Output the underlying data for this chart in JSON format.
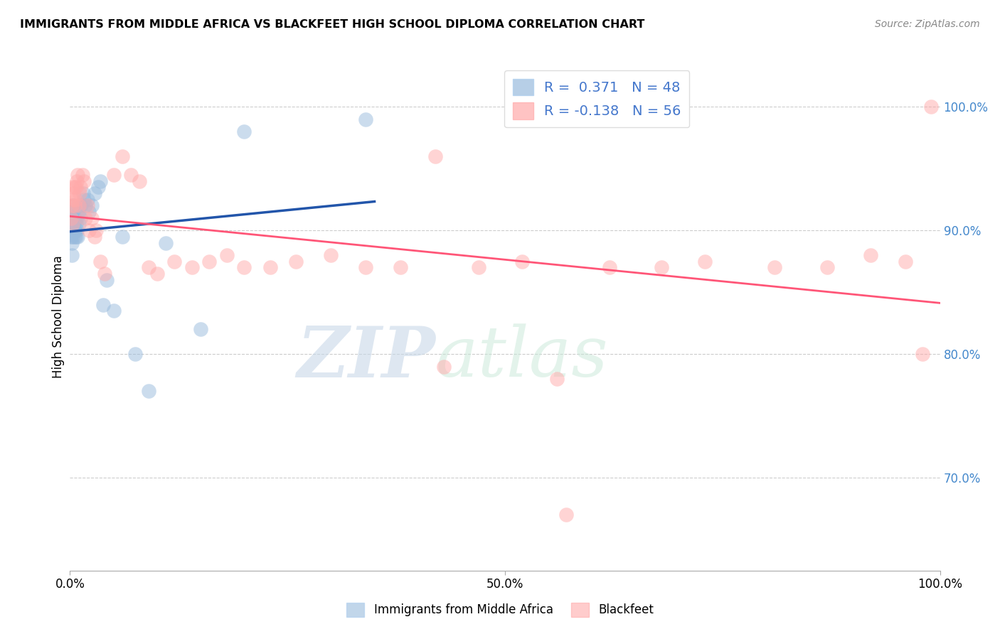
{
  "title": "IMMIGRANTS FROM MIDDLE AFRICA VS BLACKFEET HIGH SCHOOL DIPLOMA CORRELATION CHART",
  "source": "Source: ZipAtlas.com",
  "ylabel": "High School Diploma",
  "legend_r1": "R =  0.371",
  "legend_n1": "N = 48",
  "legend_r2": "R = -0.138",
  "legend_n2": "N = 56",
  "blue_color": "#99BBDD",
  "pink_color": "#FFAAAA",
  "line_blue": "#2255AA",
  "line_pink": "#FF5577",
  "watermark_zip": "ZIP",
  "watermark_atlas": "atlas",
  "blue_scatter_x": [
    0.001,
    0.001,
    0.001,
    0.002,
    0.002,
    0.002,
    0.002,
    0.003,
    0.003,
    0.003,
    0.003,
    0.004,
    0.004,
    0.004,
    0.005,
    0.005,
    0.005,
    0.006,
    0.006,
    0.007,
    0.007,
    0.008,
    0.008,
    0.009,
    0.01,
    0.01,
    0.011,
    0.012,
    0.013,
    0.015,
    0.016,
    0.018,
    0.02,
    0.022,
    0.025,
    0.028,
    0.032,
    0.035,
    0.038,
    0.042,
    0.05,
    0.06,
    0.075,
    0.09,
    0.11,
    0.15,
    0.2,
    0.34
  ],
  "blue_scatter_y": [
    0.895,
    0.9,
    0.905,
    0.88,
    0.89,
    0.905,
    0.915,
    0.895,
    0.9,
    0.91,
    0.92,
    0.905,
    0.91,
    0.92,
    0.895,
    0.9,
    0.91,
    0.9,
    0.91,
    0.895,
    0.905,
    0.9,
    0.91,
    0.895,
    0.905,
    0.915,
    0.92,
    0.91,
    0.92,
    0.93,
    0.925,
    0.92,
    0.925,
    0.915,
    0.92,
    0.93,
    0.935,
    0.94,
    0.84,
    0.86,
    0.835,
    0.895,
    0.8,
    0.77,
    0.89,
    0.82,
    0.98,
    0.99
  ],
  "pink_scatter_x": [
    0.001,
    0.002,
    0.002,
    0.003,
    0.003,
    0.004,
    0.005,
    0.005,
    0.006,
    0.007,
    0.008,
    0.009,
    0.01,
    0.011,
    0.012,
    0.014,
    0.016,
    0.018,
    0.02,
    0.022,
    0.025,
    0.028,
    0.03,
    0.035,
    0.04,
    0.05,
    0.06,
    0.07,
    0.08,
    0.09,
    0.1,
    0.12,
    0.14,
    0.16,
    0.18,
    0.2,
    0.23,
    0.26,
    0.3,
    0.34,
    0.38,
    0.42,
    0.47,
    0.52,
    0.57,
    0.62,
    0.68,
    0.73,
    0.81,
    0.87,
    0.92,
    0.96,
    0.99,
    0.56,
    0.43,
    0.98
  ],
  "pink_scatter_y": [
    0.91,
    0.92,
    0.935,
    0.905,
    0.925,
    0.93,
    0.92,
    0.935,
    0.925,
    0.935,
    0.94,
    0.945,
    0.92,
    0.93,
    0.935,
    0.945,
    0.94,
    0.91,
    0.92,
    0.9,
    0.91,
    0.895,
    0.9,
    0.875,
    0.865,
    0.945,
    0.96,
    0.945,
    0.94,
    0.87,
    0.865,
    0.875,
    0.87,
    0.875,
    0.88,
    0.87,
    0.87,
    0.875,
    0.88,
    0.87,
    0.87,
    0.96,
    0.87,
    0.875,
    0.67,
    0.87,
    0.87,
    0.875,
    0.87,
    0.87,
    0.88,
    0.875,
    1.0,
    0.78,
    0.79,
    0.8
  ],
  "xlim": [
    0.0,
    1.0
  ],
  "ylim": [
    0.625,
    1.035
  ],
  "ytick_positions": [
    0.7,
    0.8,
    0.9,
    1.0
  ],
  "ytick_labels": [
    "70.0%",
    "80.0%",
    "90.0%",
    "100.0%"
  ],
  "xtick_positions": [
    0.0,
    0.5,
    1.0
  ],
  "xtick_labels": [
    "0.0%",
    "50.0%",
    "100.0%"
  ]
}
